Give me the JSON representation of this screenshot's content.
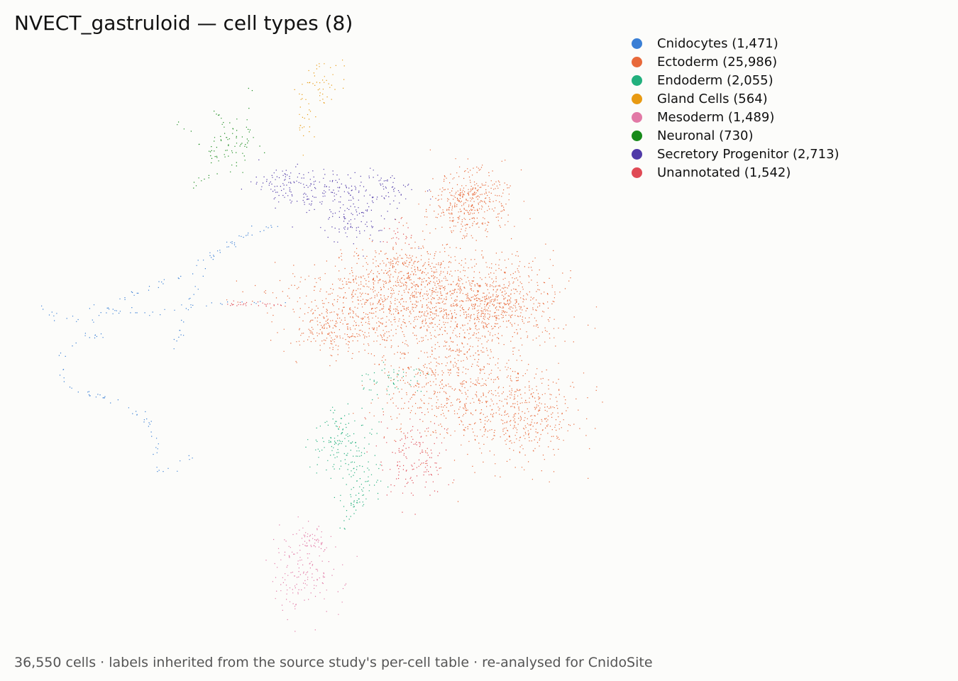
{
  "title": "NVECT_gastruloid — cell types (8)",
  "caption": "36,550 cells · labels inherited from the source study's per-cell table · re-analysed for CnidoSite",
  "chart_data": {
    "type": "scatter",
    "title": "NVECT_gastruloid — cell types (8)",
    "total_cells": "36,550",
    "legend_position": "top-right",
    "grid": false,
    "axes_visible": false,
    "categories": [
      {
        "name": "Cnidocytes",
        "label": "Cnidocytes (1,471)",
        "count": 1471,
        "color": "#3a7fd5"
      },
      {
        "name": "Ectoderm",
        "label": "Ectoderm (25,986)",
        "count": 25986,
        "color": "#e8693a"
      },
      {
        "name": "Endoderm",
        "label": "Endoderm (2,055)",
        "count": 2055,
        "color": "#22b07d"
      },
      {
        "name": "Gland Cells",
        "label": "Gland Cells (564)",
        "count": 564,
        "color": "#e89a12"
      },
      {
        "name": "Mesoderm",
        "label": "Mesoderm (1,489)",
        "count": 1489,
        "color": "#e279a6"
      },
      {
        "name": "Neuronal",
        "label": "Neuronal (730)",
        "count": 730,
        "color": "#178a1a"
      },
      {
        "name": "Secretory Progenitor",
        "label": "Secretory Progenitor (2,713)",
        "count": 2713,
        "color": "#503aa8"
      },
      {
        "name": "Unannotated",
        "label": "Unannotated (1,542)",
        "count": 1542,
        "color": "#e04a55"
      }
    ]
  }
}
